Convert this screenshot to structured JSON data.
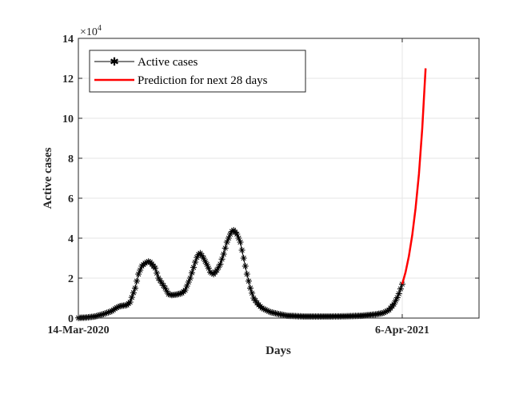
{
  "chart_data": {
    "type": "line",
    "xlabel": "Days",
    "ylabel": "Active cases",
    "x_tick_labels": [
      "14-Mar-2020",
      "6-Apr-2021"
    ],
    "x_range_days": [
      0,
      480
    ],
    "x_tick_days": [
      0,
      388
    ],
    "ylim": [
      0,
      140000
    ],
    "y_ticks": [
      0,
      20000,
      40000,
      60000,
      80000,
      100000,
      120000,
      140000
    ],
    "y_tick_labels": [
      "0",
      "2",
      "4",
      "6",
      "8",
      "10",
      "12",
      "14"
    ],
    "y_exponent_label": "×10",
    "y_exponent_power": "4",
    "grid": true,
    "legend_position": "top-left",
    "series": [
      {
        "name": "Active cases",
        "color": "#000000",
        "marker": "asterisk",
        "points": [
          [
            0,
            100
          ],
          [
            10,
            300
          ],
          [
            20,
            800
          ],
          [
            30,
            2000
          ],
          [
            40,
            3500
          ],
          [
            45,
            5000
          ],
          [
            50,
            6000
          ],
          [
            58,
            6500
          ],
          [
            62,
            8000
          ],
          [
            68,
            15000
          ],
          [
            72,
            22000
          ],
          [
            76,
            26000
          ],
          [
            80,
            27500
          ],
          [
            85,
            28500
          ],
          [
            88,
            27000
          ],
          [
            92,
            25000
          ],
          [
            96,
            20000
          ],
          [
            100,
            17500
          ],
          [
            104,
            15000
          ],
          [
            108,
            12000
          ],
          [
            112,
            11500
          ],
          [
            118,
            11800
          ],
          [
            124,
            12500
          ],
          [
            128,
            14000
          ],
          [
            134,
            20000
          ],
          [
            140,
            28000
          ],
          [
            143,
            31500
          ],
          [
            146,
            32500
          ],
          [
            150,
            30000
          ],
          [
            155,
            26000
          ],
          [
            158,
            23000
          ],
          [
            162,
            22000
          ],
          [
            166,
            24000
          ],
          [
            170,
            27000
          ],
          [
            174,
            32000
          ],
          [
            178,
            38000
          ],
          [
            183,
            43000
          ],
          [
            186,
            44000
          ],
          [
            190,
            42000
          ],
          [
            194,
            38000
          ],
          [
            198,
            30000
          ],
          [
            202,
            22000
          ],
          [
            206,
            15000
          ],
          [
            210,
            10000
          ],
          [
            215,
            7000
          ],
          [
            220,
            5000
          ],
          [
            230,
            3000
          ],
          [
            240,
            2000
          ],
          [
            250,
            1200
          ],
          [
            270,
            800
          ],
          [
            300,
            800
          ],
          [
            320,
            900
          ],
          [
            340,
            1200
          ],
          [
            355,
            1800
          ],
          [
            365,
            2500
          ],
          [
            372,
            4000
          ],
          [
            378,
            7000
          ],
          [
            383,
            11000
          ],
          [
            388,
            17000
          ]
        ]
      },
      {
        "name": "Prediction for next 28 days",
        "color": "#ff0000",
        "marker": "none",
        "points": [
          [
            388,
            17000
          ],
          [
            392,
            23000
          ],
          [
            396,
            31000
          ],
          [
            400,
            41500
          ],
          [
            404,
            55000
          ],
          [
            408,
            72000
          ],
          [
            412,
            95000
          ],
          [
            416,
            125000
          ]
        ]
      }
    ]
  }
}
